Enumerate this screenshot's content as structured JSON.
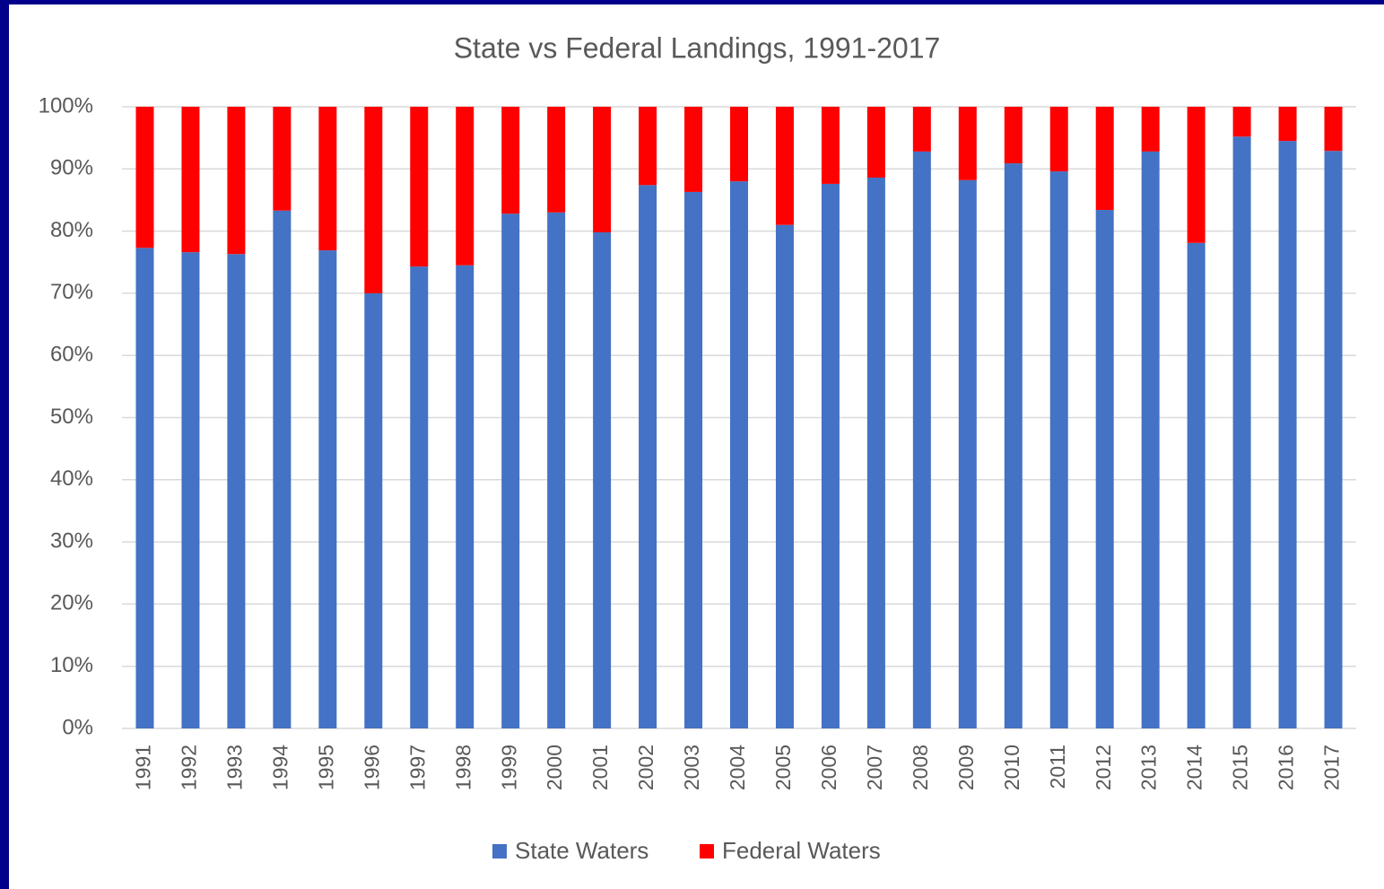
{
  "chart_data": {
    "type": "stacked_bar",
    "title": "State vs Federal Landings, 1991-2017",
    "categories": [
      "1991",
      "1992",
      "1993",
      "1994",
      "1995",
      "1996",
      "1997",
      "1998",
      "1999",
      "2000",
      "2001",
      "2002",
      "2003",
      "2004",
      "2005",
      "2006",
      "2007",
      "2008",
      "2009",
      "2010",
      "2011",
      "2012",
      "2013",
      "2014",
      "2015",
      "2016",
      "2017"
    ],
    "series": [
      {
        "name": "State Waters",
        "color": "#4472c4",
        "values": [
          77.3,
          76.6,
          76.3,
          83.3,
          76.9,
          70.0,
          74.3,
          74.5,
          82.8,
          83.0,
          79.8,
          87.4,
          86.3,
          88.0,
          81.0,
          87.6,
          88.6,
          92.8,
          88.2,
          90.9,
          89.6,
          83.4,
          92.8,
          78.1,
          95.2,
          94.5,
          92.9
        ]
      },
      {
        "name": "Federal Waters",
        "color": "#ff0000",
        "values": [
          22.7,
          23.4,
          23.7,
          16.7,
          23.1,
          30.0,
          25.7,
          25.5,
          17.2,
          17.0,
          20.2,
          12.6,
          13.7,
          12.0,
          19.0,
          12.4,
          11.4,
          7.2,
          11.8,
          9.1,
          10.4,
          16.6,
          7.2,
          21.9,
          4.8,
          5.5,
          7.1
        ]
      }
    ],
    "ylim": [
      0,
      100
    ],
    "yticks": [
      {
        "value": 0,
        "label": "0%"
      },
      {
        "value": 10,
        "label": "10%"
      },
      {
        "value": 20,
        "label": "20%"
      },
      {
        "value": 30,
        "label": "30%"
      },
      {
        "value": 40,
        "label": "40%"
      },
      {
        "value": 50,
        "label": "50%"
      },
      {
        "value": 60,
        "label": "60%"
      },
      {
        "value": 70,
        "label": "70%"
      },
      {
        "value": 80,
        "label": "80%"
      },
      {
        "value": 90,
        "label": "90%"
      },
      {
        "value": 100,
        "label": "100%"
      }
    ],
    "grid": true,
    "legend": "bottom"
  }
}
